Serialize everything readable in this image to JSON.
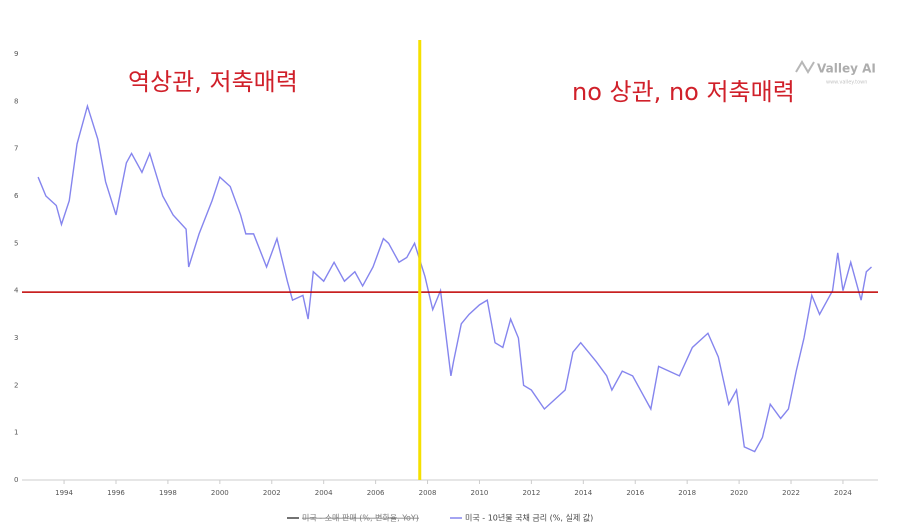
{
  "chart_data": {
    "type": "line",
    "annotations": [
      "역상관, 저축매력",
      "no 상관, no 저축매력"
    ],
    "watermark": "Valley AI",
    "watermark_url": "www.valley.town",
    "xlim": [
      1992.38,
      2025.35
    ],
    "ylim": [
      0,
      9
    ],
    "xticks": [
      1994,
      1996,
      1998,
      2000,
      2002,
      2004,
      2006,
      2008,
      2010,
      2012,
      2014,
      2016,
      2018,
      2020,
      2022,
      2024
    ],
    "yticks": [
      0,
      1,
      2,
      3,
      4,
      5,
      6,
      7,
      8,
      9
    ],
    "grid": false,
    "vline": 2007.7,
    "vline_color": "#f5e000",
    "hline": 3.97,
    "hline_color": "#c00000",
    "x": [
      1993.0,
      1993.3,
      1993.7,
      1993.9,
      1994.2,
      1994.5,
      1994.9,
      1995.3,
      1995.6,
      1996.0,
      1996.4,
      1996.6,
      1997.0,
      1997.3,
      1997.8,
      1998.2,
      1998.7,
      1998.8,
      1999.2,
      1999.7,
      2000.0,
      2000.4,
      2000.8,
      2001.0,
      2001.3,
      2001.8,
      2002.2,
      2002.6,
      2002.8,
      2003.2,
      2003.4,
      2003.6,
      2004.0,
      2004.4,
      2004.8,
      2005.2,
      2005.5,
      2005.9,
      2006.3,
      2006.5,
      2006.9,
      2007.2,
      2007.5,
      2007.9,
      2008.2,
      2008.5,
      2008.9,
      2009.0,
      2009.3,
      2009.6,
      2010.0,
      2010.3,
      2010.6,
      2010.9,
      2011.2,
      2011.5,
      2011.7,
      2012.0,
      2012.5,
      2012.9,
      2013.3,
      2013.6,
      2013.9,
      2014.5,
      2014.9,
      2015.1,
      2015.5,
      2015.9,
      2016.3,
      2016.6,
      2016.9,
      2017.3,
      2017.7,
      2018.2,
      2018.8,
      2019.2,
      2019.6,
      2019.9,
      2020.2,
      2020.6,
      2020.9,
      2021.2,
      2021.6,
      2021.9,
      2022.2,
      2022.5,
      2022.8,
      2023.1,
      2023.6,
      2023.8,
      2024.0,
      2024.3,
      2024.7,
      2024.9,
      2025.1
    ],
    "series": [
      {
        "name": "미국 - 소매 판매 (%, 변화율, YoY)",
        "color": "#444444",
        "hidden": true
      },
      {
        "name": "미국 - 10년물 국채 금리 (%, 실제 값)",
        "color": "#8585ee",
        "values": [
          6.4,
          6.0,
          5.8,
          5.4,
          5.9,
          7.1,
          7.9,
          7.2,
          6.3,
          5.6,
          6.7,
          6.9,
          6.5,
          6.9,
          6.0,
          5.6,
          5.3,
          4.5,
          5.2,
          5.9,
          6.4,
          6.2,
          5.6,
          5.2,
          5.2,
          4.5,
          5.1,
          4.2,
          3.8,
          3.9,
          3.4,
          4.4,
          4.2,
          4.6,
          4.2,
          4.4,
          4.1,
          4.5,
          5.1,
          5.0,
          4.6,
          4.7,
          5.0,
          4.3,
          3.6,
          4.0,
          2.2,
          2.5,
          3.3,
          3.5,
          3.7,
          3.8,
          2.9,
          2.8,
          3.4,
          3.0,
          2.0,
          1.9,
          1.5,
          1.7,
          1.9,
          2.7,
          2.9,
          2.5,
          2.2,
          1.9,
          2.3,
          2.2,
          1.8,
          1.5,
          2.4,
          2.3,
          2.2,
          2.8,
          3.1,
          2.6,
          1.6,
          1.9,
          0.7,
          0.6,
          0.9,
          1.6,
          1.3,
          1.5,
          2.3,
          3.0,
          3.9,
          3.5,
          4.0,
          4.8,
          4.0,
          4.6,
          3.8,
          4.4,
          4.5
        ]
      }
    ]
  }
}
